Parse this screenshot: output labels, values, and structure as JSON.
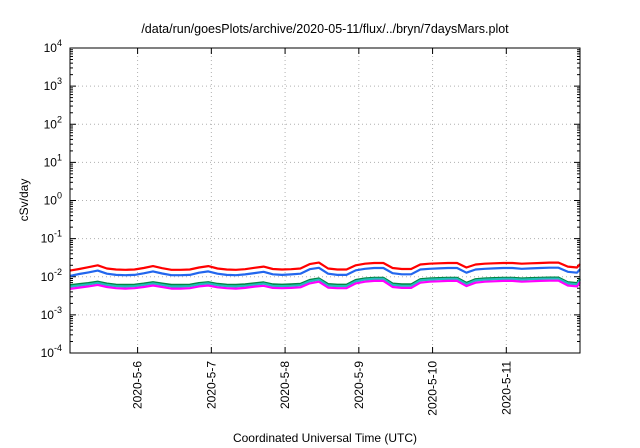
{
  "chart_data": {
    "type": "line",
    "title": "/data/run/goesPlots/archive/2020-05-11/flux/../bryn/7daysMars.plot",
    "xlabel": "Coordinated Universal Time (UTC)",
    "ylabel": "cSv/day",
    "yscale": "log",
    "ylim": [
      0.0001,
      10000
    ],
    "yticks": [
      {
        "base": "10",
        "exp": "-4",
        "value": 0.0001
      },
      {
        "base": "10",
        "exp": "-3",
        "value": 0.001
      },
      {
        "base": "10",
        "exp": "-2",
        "value": 0.01
      },
      {
        "base": "10",
        "exp": "-1",
        "value": 0.1
      },
      {
        "base": "10",
        "exp": "0",
        "value": 1
      },
      {
        "base": "10",
        "exp": "1",
        "value": 10
      },
      {
        "base": "10",
        "exp": "2",
        "value": 100
      },
      {
        "base": "10",
        "exp": "3",
        "value": 1000
      },
      {
        "base": "10",
        "exp": "4",
        "value": 10000
      }
    ],
    "xlim": [
      "2020-05-05T02:00",
      "2020-05-11T23:59"
    ],
    "xticks": [
      {
        "label": "2020-5-6",
        "date": "2020-05-06"
      },
      {
        "label": "2020-5-7",
        "date": "2020-05-07"
      },
      {
        "label": "2020-5-8",
        "date": "2020-05-08"
      },
      {
        "label": "2020-5-9",
        "date": "2020-05-09"
      },
      {
        "label": "2020-5-10",
        "date": "2020-05-10"
      },
      {
        "label": "2020-5-11",
        "date": "2020-05-11"
      }
    ],
    "grid": true,
    "x": [
      "2020-05-05T02:00",
      "2020-05-05T05:00",
      "2020-05-05T08:00",
      "2020-05-05T11:00",
      "2020-05-05T14:00",
      "2020-05-05T17:00",
      "2020-05-05T20:00",
      "2020-05-05T23:00",
      "2020-05-06T02:00",
      "2020-05-06T05:00",
      "2020-05-06T08:00",
      "2020-05-06T11:00",
      "2020-05-06T14:00",
      "2020-05-06T17:00",
      "2020-05-06T20:00",
      "2020-05-06T23:00",
      "2020-05-07T02:00",
      "2020-05-07T05:00",
      "2020-05-07T08:00",
      "2020-05-07T11:00",
      "2020-05-07T14:00",
      "2020-05-07T17:00",
      "2020-05-07T20:00",
      "2020-05-07T23:00",
      "2020-05-08T02:00",
      "2020-05-08T05:00",
      "2020-05-08T08:00",
      "2020-05-08T11:00",
      "2020-05-08T14:00",
      "2020-05-08T17:00",
      "2020-05-08T20:00",
      "2020-05-08T23:00",
      "2020-05-09T02:00",
      "2020-05-09T05:00",
      "2020-05-09T08:00",
      "2020-05-09T11:00",
      "2020-05-09T14:00",
      "2020-05-09T17:00",
      "2020-05-09T20:00",
      "2020-05-09T23:00",
      "2020-05-10T02:00",
      "2020-05-10T05:00",
      "2020-05-10T08:00",
      "2020-05-10T11:00",
      "2020-05-10T14:00",
      "2020-05-10T17:00",
      "2020-05-10T20:00",
      "2020-05-10T23:00",
      "2020-05-11T02:00",
      "2020-05-11T05:00",
      "2020-05-11T08:00",
      "2020-05-11T11:00",
      "2020-05-11T14:00",
      "2020-05-11T17:00",
      "2020-05-11T20:00",
      "2020-05-11T23:00",
      "2020-05-11T23:59"
    ],
    "series": [
      {
        "color": "#ff0000",
        "values": [
          0.0145,
          0.016,
          0.0178,
          0.02,
          0.0165,
          0.0155,
          0.0152,
          0.0155,
          0.017,
          0.019,
          0.0168,
          0.0152,
          0.0152,
          0.0155,
          0.0175,
          0.019,
          0.0165,
          0.0155,
          0.0152,
          0.0158,
          0.0172,
          0.0185,
          0.016,
          0.0155,
          0.0158,
          0.0165,
          0.0215,
          0.0235,
          0.0165,
          0.0155,
          0.0155,
          0.02,
          0.022,
          0.023,
          0.023,
          0.017,
          0.016,
          0.016,
          0.021,
          0.022,
          0.0225,
          0.023,
          0.023,
          0.0175,
          0.021,
          0.022,
          0.0225,
          0.023,
          0.023,
          0.022,
          0.0225,
          0.023,
          0.0235,
          0.0235,
          0.0185,
          0.0175,
          0.0215
        ]
      },
      {
        "color": "#2266ee",
        "values": [
          0.0105,
          0.0118,
          0.013,
          0.0145,
          0.012,
          0.0112,
          0.011,
          0.0112,
          0.0123,
          0.0138,
          0.0122,
          0.011,
          0.011,
          0.0112,
          0.0128,
          0.0138,
          0.012,
          0.0112,
          0.011,
          0.0115,
          0.0125,
          0.0135,
          0.0116,
          0.0112,
          0.0115,
          0.012,
          0.0158,
          0.0172,
          0.012,
          0.0112,
          0.0112,
          0.0148,
          0.0162,
          0.017,
          0.017,
          0.0124,
          0.0116,
          0.0116,
          0.0155,
          0.0162,
          0.0166,
          0.017,
          0.017,
          0.0128,
          0.0155,
          0.0162,
          0.0166,
          0.017,
          0.017,
          0.0162,
          0.0166,
          0.017,
          0.0173,
          0.0173,
          0.0135,
          0.0128,
          0.0158
        ]
      },
      {
        "color": "#008844",
        "values": [
          0.006,
          0.0064,
          0.0068,
          0.0074,
          0.0066,
          0.0062,
          0.0061,
          0.0062,
          0.0066,
          0.0072,
          0.0066,
          0.0061,
          0.0061,
          0.0062,
          0.0068,
          0.0072,
          0.0065,
          0.0062,
          0.0061,
          0.0063,
          0.0067,
          0.0071,
          0.0063,
          0.0062,
          0.0063,
          0.0065,
          0.0082,
          0.009,
          0.0064,
          0.0062,
          0.0062,
          0.0082,
          0.009,
          0.0094,
          0.0094,
          0.0066,
          0.0063,
          0.0063,
          0.0086,
          0.009,
          0.0092,
          0.0094,
          0.0094,
          0.0069,
          0.0086,
          0.009,
          0.0092,
          0.0094,
          0.0094,
          0.009,
          0.0092,
          0.0094,
          0.0095,
          0.0095,
          0.0072,
          0.0068,
          0.0088
        ]
      },
      {
        "color": "#22bbbb",
        "values": [
          0.0055,
          0.0059,
          0.0063,
          0.0069,
          0.0061,
          0.0057,
          0.0056,
          0.0057,
          0.0061,
          0.0067,
          0.0061,
          0.0056,
          0.0056,
          0.0057,
          0.0063,
          0.0067,
          0.006,
          0.0057,
          0.0056,
          0.0058,
          0.0062,
          0.0066,
          0.0058,
          0.0057,
          0.0058,
          0.006,
          0.0076,
          0.0084,
          0.0059,
          0.0057,
          0.0057,
          0.0076,
          0.0084,
          0.0088,
          0.0088,
          0.0061,
          0.0058,
          0.0058,
          0.008,
          0.0084,
          0.0086,
          0.0088,
          0.0088,
          0.0064,
          0.008,
          0.0084,
          0.0086,
          0.0088,
          0.0088,
          0.0084,
          0.0086,
          0.0088,
          0.0089,
          0.0089,
          0.0067,
          0.0063,
          0.0082
        ]
      },
      {
        "color": "#ff00ff",
        "values": [
          0.0048,
          0.0052,
          0.0056,
          0.0061,
          0.0054,
          0.005,
          0.0049,
          0.005,
          0.0054,
          0.0059,
          0.0054,
          0.0049,
          0.0049,
          0.005,
          0.0056,
          0.0059,
          0.0053,
          0.005,
          0.0049,
          0.0051,
          0.0055,
          0.0058,
          0.0051,
          0.005,
          0.0051,
          0.0053,
          0.0067,
          0.0074,
          0.0052,
          0.005,
          0.005,
          0.0067,
          0.0074,
          0.0078,
          0.0078,
          0.0054,
          0.0051,
          0.0051,
          0.007,
          0.0074,
          0.0076,
          0.0078,
          0.0078,
          0.0057,
          0.007,
          0.0074,
          0.0076,
          0.0078,
          0.0078,
          0.0074,
          0.0076,
          0.0078,
          0.0079,
          0.0079,
          0.0059,
          0.0056,
          0.0072
        ]
      }
    ]
  }
}
